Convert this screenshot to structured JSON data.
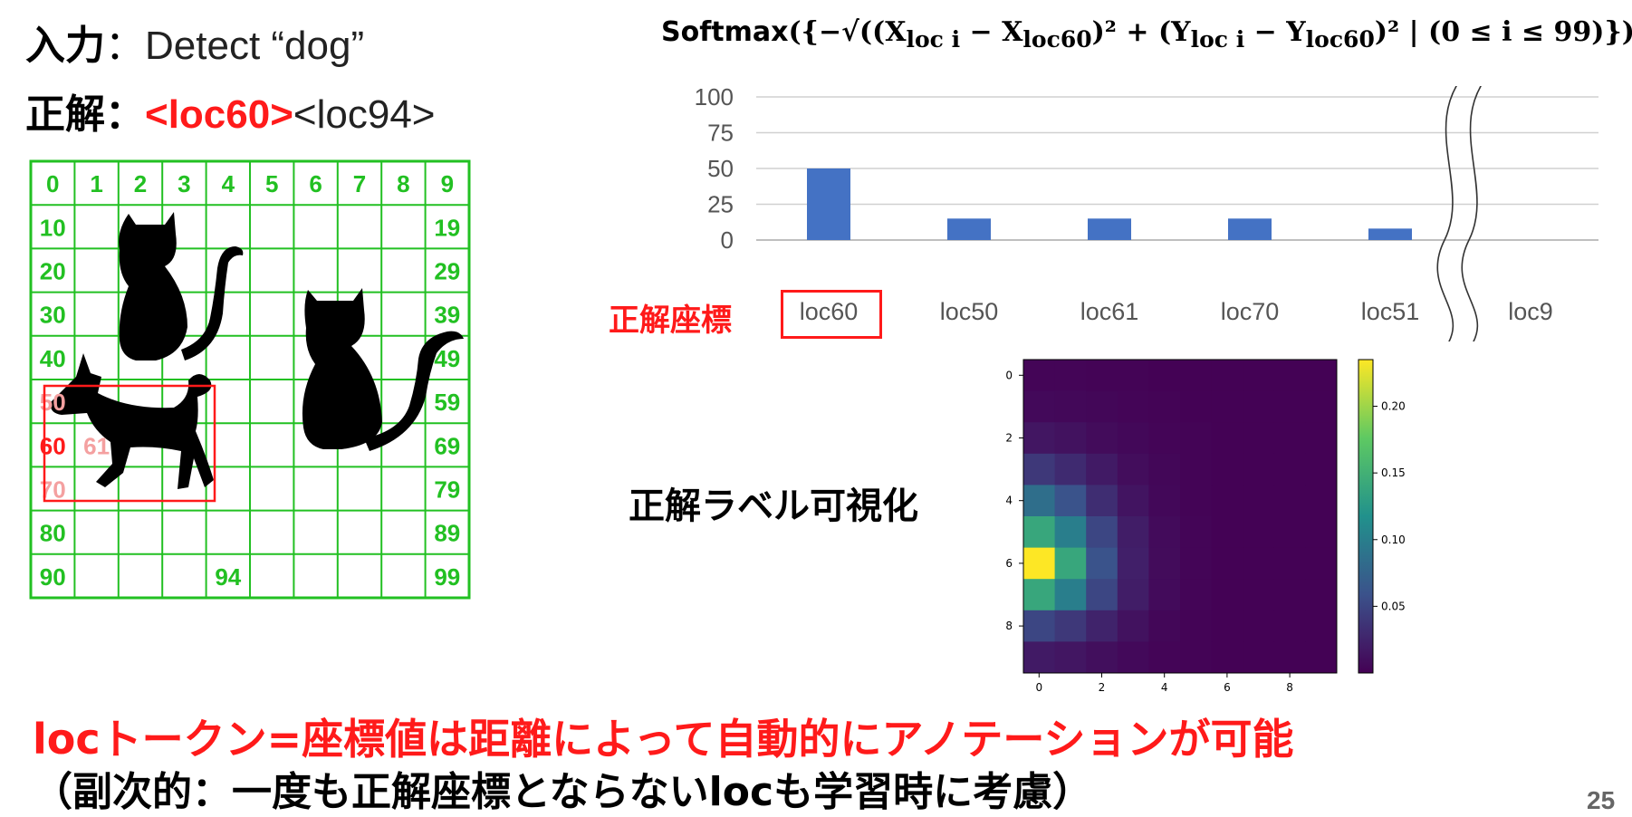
{
  "input": {
    "label": "入力",
    "sep": "：",
    "value": "Detect “dog”"
  },
  "answer": {
    "label": "正解",
    "sep": "：",
    "token1": "<loc60>",
    "token2": "<loc94>"
  },
  "formula": {
    "func": "Softmax",
    "body": "−√((X",
    "sub_loci": "loc i",
    "minus": " − X",
    "sub_loc60": "loc60",
    "sq_plus_y": ")² + (Y",
    "minus_y": " − Y",
    "sq_end": ")²",
    "cond": "(0 ≤ i ≤ 99)"
  },
  "grid": {
    "rows": 10,
    "cols": 10,
    "labels": [
      {
        "cell": 0,
        "text": "0",
        "color": "green"
      },
      {
        "cell": 1,
        "text": "1",
        "color": "green"
      },
      {
        "cell": 2,
        "text": "2",
        "color": "green"
      },
      {
        "cell": 3,
        "text": "3",
        "color": "green"
      },
      {
        "cell": 4,
        "text": "4",
        "color": "green"
      },
      {
        "cell": 5,
        "text": "5",
        "color": "green"
      },
      {
        "cell": 6,
        "text": "6",
        "color": "green"
      },
      {
        "cell": 7,
        "text": "7",
        "color": "green"
      },
      {
        "cell": 8,
        "text": "8",
        "color": "green"
      },
      {
        "cell": 9,
        "text": "9",
        "color": "green"
      },
      {
        "cell": 10,
        "text": "10",
        "color": "green"
      },
      {
        "cell": 19,
        "text": "19",
        "color": "green"
      },
      {
        "cell": 20,
        "text": "20",
        "color": "green"
      },
      {
        "cell": 29,
        "text": "29",
        "color": "green"
      },
      {
        "cell": 30,
        "text": "30",
        "color": "green"
      },
      {
        "cell": 39,
        "text": "39",
        "color": "green"
      },
      {
        "cell": 40,
        "text": "40",
        "color": "green"
      },
      {
        "cell": 49,
        "text": "49",
        "color": "green"
      },
      {
        "cell": 50,
        "text": "50",
        "color": "pink"
      },
      {
        "cell": 59,
        "text": "59",
        "color": "green"
      },
      {
        "cell": 60,
        "text": "60",
        "color": "red"
      },
      {
        "cell": 61,
        "text": "61",
        "color": "pink"
      },
      {
        "cell": 69,
        "text": "69",
        "color": "green"
      },
      {
        "cell": 70,
        "text": "70",
        "color": "pink"
      },
      {
        "cell": 79,
        "text": "79",
        "color": "green"
      },
      {
        "cell": 80,
        "text": "80",
        "color": "green"
      },
      {
        "cell": 89,
        "text": "89",
        "color": "green"
      },
      {
        "cell": 90,
        "text": "90",
        "color": "green"
      },
      {
        "cell": 94,
        "text": "94",
        "color": "green"
      },
      {
        "cell": 99,
        "text": "99",
        "color": "green"
      }
    ],
    "colors": {
      "green": "#22c022",
      "red": "#ff1a1a",
      "pink": "#f4a0a0"
    }
  },
  "correct_label": "正解座標",
  "viz_label": "正解ラベル可視化",
  "chart_data": [
    {
      "type": "bar",
      "categories": [
        "loc60",
        "loc50",
        "loc61",
        "loc70",
        "loc51",
        "loc9"
      ],
      "values": [
        50,
        15,
        15,
        15,
        8,
        null
      ],
      "ylim": [
        0,
        100
      ],
      "yticks": [
        0,
        25,
        50,
        75,
        100
      ],
      "grid": true,
      "bar_color": "#4472c4",
      "axis_break_between": [
        "loc51",
        "loc9"
      ]
    },
    {
      "type": "heatmap",
      "rows": 10,
      "cols": 10,
      "xticks": [
        0,
        2,
        4,
        6,
        8
      ],
      "yticks": [
        0,
        2,
        4,
        6,
        8
      ],
      "colorbar_ticks": [
        "0.20",
        "0.15",
        "0.10",
        "0.05"
      ],
      "colorbar_range": [
        0,
        0.235
      ],
      "values": [
        [
          0.003,
          0.003,
          0.002,
          0.002,
          0.001,
          0.001,
          0.001,
          0.001,
          0.001,
          0.001
        ],
        [
          0.006,
          0.005,
          0.004,
          0.003,
          0.002,
          0.001,
          0.001,
          0.001,
          0.001,
          0.001
        ],
        [
          0.015,
          0.012,
          0.008,
          0.005,
          0.003,
          0.002,
          0.001,
          0.001,
          0.001,
          0.001
        ],
        [
          0.04,
          0.03,
          0.018,
          0.009,
          0.004,
          0.002,
          0.001,
          0.001,
          0.001,
          0.001
        ],
        [
          0.085,
          0.06,
          0.032,
          0.014,
          0.005,
          0.002,
          0.001,
          0.001,
          0.001,
          0.001
        ],
        [
          0.14,
          0.1,
          0.05,
          0.02,
          0.007,
          0.003,
          0.001,
          0.001,
          0.001,
          0.001
        ],
        [
          0.235,
          0.14,
          0.06,
          0.022,
          0.008,
          0.003,
          0.001,
          0.001,
          0.001,
          0.001
        ],
        [
          0.14,
          0.1,
          0.05,
          0.02,
          0.007,
          0.003,
          0.001,
          0.001,
          0.001,
          0.001
        ],
        [
          0.05,
          0.04,
          0.025,
          0.012,
          0.004,
          0.002,
          0.001,
          0.001,
          0.001,
          0.001
        ],
        [
          0.018,
          0.015,
          0.01,
          0.006,
          0.003,
          0.002,
          0.001,
          0.001,
          0.001,
          0.001
        ]
      ]
    }
  ],
  "caption": {
    "line1": "locトークン=座標値は距離によって自動的にアノテーションが可能",
    "line2": "（副次的：一度も正解座標とならないlocも学習時に考慮）"
  },
  "page_number": "25"
}
